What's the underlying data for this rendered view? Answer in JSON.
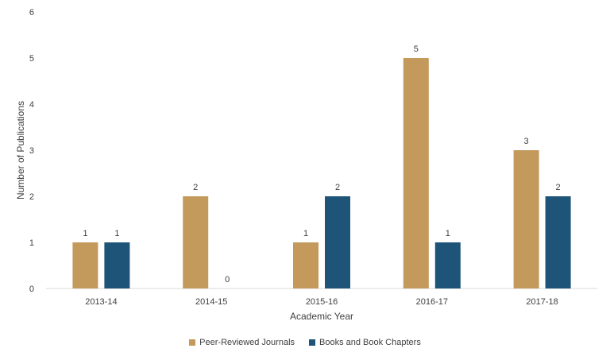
{
  "chart_data": {
    "type": "bar",
    "categories": [
      "2013-14",
      "2014-15",
      "2015-16",
      "2016-17",
      "2017-18"
    ],
    "series": [
      {
        "name": "Peer-Reviewed Journals",
        "values": [
          1,
          2,
          1,
          5,
          3
        ],
        "color": "#C39A5C"
      },
      {
        "name": "Books and Book Chapters",
        "values": [
          1,
          0,
          2,
          1,
          2
        ],
        "color": "#1D5478"
      }
    ],
    "xlabel": "Academic Year",
    "ylabel": "Number of Publications",
    "ylim": [
      0,
      6
    ],
    "yticks": [
      0,
      1,
      2,
      3,
      4,
      5,
      6
    ],
    "grid": false,
    "legend": "bottom"
  }
}
